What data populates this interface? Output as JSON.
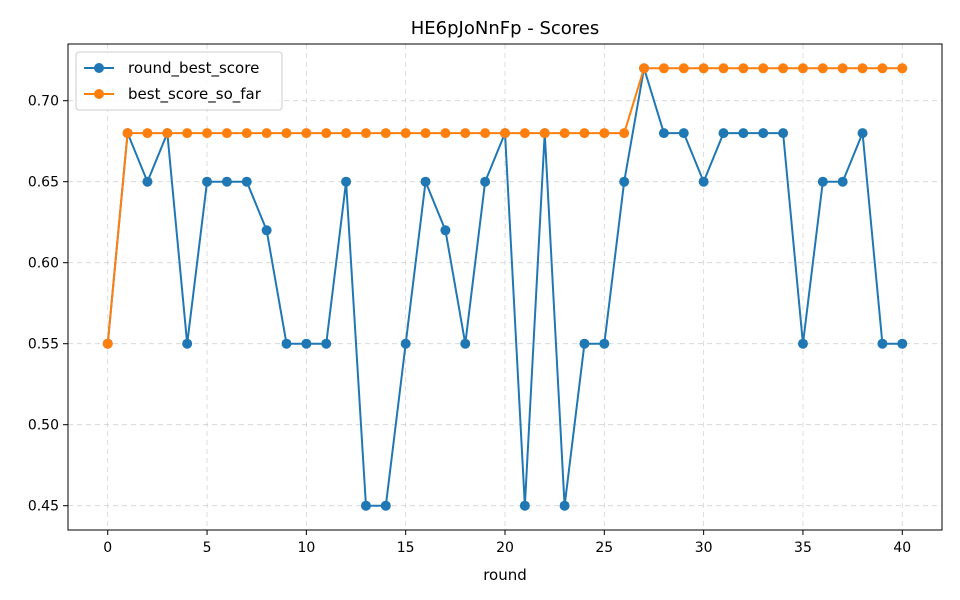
{
  "chart_data": {
    "type": "line",
    "title": "HE6pJoNnFp - Scores",
    "xlabel": "round",
    "ylabel": "",
    "xlim": [
      -2,
      42
    ],
    "ylim": [
      0.435,
      0.735
    ],
    "x_ticks": [
      0,
      5,
      10,
      15,
      20,
      25,
      30,
      35,
      40
    ],
    "x_tick_labels": [
      "0",
      "5",
      "10",
      "15",
      "20",
      "25",
      "30",
      "35",
      "40"
    ],
    "y_ticks": [
      0.45,
      0.5,
      0.55,
      0.6,
      0.65,
      0.7
    ],
    "y_tick_labels": [
      "0.45",
      "0.50",
      "0.55",
      "0.60",
      "0.65",
      "0.70"
    ],
    "grid": true,
    "legend_position": "top-left",
    "x": [
      0,
      1,
      2,
      3,
      4,
      5,
      6,
      7,
      8,
      9,
      10,
      11,
      12,
      13,
      14,
      15,
      16,
      17,
      18,
      19,
      20,
      21,
      22,
      23,
      24,
      25,
      26,
      27,
      28,
      29,
      30,
      31,
      32,
      33,
      34,
      35,
      36,
      37,
      38,
      39,
      40
    ],
    "series": [
      {
        "name": "round_best_score",
        "color": "#1f77b4",
        "values": [
          0.55,
          0.68,
          0.65,
          0.68,
          0.55,
          0.65,
          0.65,
          0.65,
          0.62,
          0.55,
          0.55,
          0.55,
          0.65,
          0.45,
          0.45,
          0.55,
          0.65,
          0.62,
          0.55,
          0.65,
          0.68,
          0.45,
          0.68,
          0.45,
          0.55,
          0.55,
          0.65,
          0.72,
          0.68,
          0.68,
          0.65,
          0.68,
          0.68,
          0.68,
          0.68,
          0.55,
          0.65,
          0.65,
          0.68,
          0.55,
          0.55
        ]
      },
      {
        "name": "best_score_so_far",
        "color": "#ff7f0e",
        "values": [
          0.55,
          0.68,
          0.68,
          0.68,
          0.68,
          0.68,
          0.68,
          0.68,
          0.68,
          0.68,
          0.68,
          0.68,
          0.68,
          0.68,
          0.68,
          0.68,
          0.68,
          0.68,
          0.68,
          0.68,
          0.68,
          0.68,
          0.68,
          0.68,
          0.68,
          0.68,
          0.68,
          0.72,
          0.72,
          0.72,
          0.72,
          0.72,
          0.72,
          0.72,
          0.72,
          0.72,
          0.72,
          0.72,
          0.72,
          0.72,
          0.72
        ]
      }
    ]
  }
}
